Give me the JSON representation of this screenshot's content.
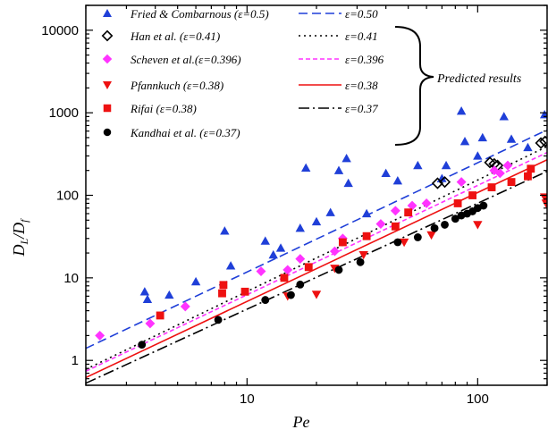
{
  "chart_data": {
    "type": "scatter",
    "title": "",
    "xlabel": "Pe",
    "ylabel_main": "D",
    "ylabel_sub1": "L",
    "ylabel_mid": "/D",
    "ylabel_sub2": "f",
    "xscale": "log",
    "yscale": "log",
    "xlim": [
      2,
      200
    ],
    "ylim": [
      0.5,
      20000
    ],
    "x_ticks": [
      10,
      100
    ],
    "y_ticks": [
      1,
      10,
      100,
      1000,
      10000
    ],
    "x_tick_labels": [
      "10",
      "100"
    ],
    "y_tick_labels": [
      "1",
      "10",
      "100",
      "1000",
      "10000"
    ],
    "grid": false,
    "legend_position": "top-left",
    "brace_label": "Predicted results",
    "series": [
      {
        "name": "Fried & Combarnous (ε=0.5)",
        "marker": "triangle-up",
        "color": "#1f3fd8",
        "points": [
          [
            3.6,
            6.8
          ],
          [
            3.7,
            5.5
          ],
          [
            4.6,
            6.2
          ],
          [
            6.0,
            9.0
          ],
          [
            8.0,
            37
          ],
          [
            8.5,
            14
          ],
          [
            12.0,
            28
          ],
          [
            13.0,
            19
          ],
          [
            14.0,
            23
          ],
          [
            17.0,
            40
          ],
          [
            18.0,
            215
          ],
          [
            20.0,
            48
          ],
          [
            23.0,
            62
          ],
          [
            25.0,
            200
          ],
          [
            27.0,
            280
          ],
          [
            27.5,
            140
          ],
          [
            33.0,
            60
          ],
          [
            40.0,
            185
          ],
          [
            45.0,
            150
          ],
          [
            55.0,
            230
          ],
          [
            70.0,
            160
          ],
          [
            73.0,
            230
          ],
          [
            85.0,
            1050
          ],
          [
            88.0,
            450
          ],
          [
            105.0,
            500
          ],
          [
            130.0,
            900
          ],
          [
            140.0,
            480
          ],
          [
            165.0,
            380
          ],
          [
            195.0,
            950
          ],
          [
            100.0,
            300
          ]
        ]
      },
      {
        "name": "Han et al. (ε=0.41)",
        "marker": "diamond-open",
        "color": "#000000",
        "points": [
          [
            67.0,
            140
          ],
          [
            72.0,
            145
          ],
          [
            113.0,
            250
          ],
          [
            118.0,
            240
          ],
          [
            122.0,
            230
          ],
          [
            188.0,
            430
          ],
          [
            196.0,
            450
          ]
        ]
      },
      {
        "name": "Scheven et al.(ε=0.396)",
        "marker": "diamond",
        "color": "#ff33ff",
        "points": [
          [
            2.3,
            2.0
          ],
          [
            3.8,
            2.8
          ],
          [
            5.4,
            4.5
          ],
          [
            11.5,
            12.0
          ],
          [
            15.0,
            12.5
          ],
          [
            17.0,
            17.0
          ],
          [
            24.0,
            21.0
          ],
          [
            26.0,
            30.0
          ],
          [
            38.0,
            45.0
          ],
          [
            44.0,
            65.0
          ],
          [
            52.0,
            75.0
          ],
          [
            60.0,
            80.0
          ],
          [
            85.0,
            145.0
          ],
          [
            118.0,
            200.0
          ],
          [
            125.0,
            185.0
          ],
          [
            135.0,
            230.0
          ]
        ]
      },
      {
        "name": "Pfannkuch  (ε=0.38)",
        "marker": "triangle-down",
        "color": "#ee1111",
        "points": [
          [
            15.0,
            6.0
          ],
          [
            20.0,
            6.3
          ],
          [
            24.0,
            13.0
          ],
          [
            32.0,
            19.0
          ],
          [
            48.0,
            27.0
          ],
          [
            63.0,
            33.0
          ],
          [
            100.0,
            44.0
          ],
          [
            195.0,
            95.0
          ],
          [
            198.0,
            80.0
          ]
        ]
      },
      {
        "name": "Rifai (ε=0.38)",
        "marker": "square",
        "color": "#ee1111",
        "points": [
          [
            4.2,
            3.5
          ],
          [
            7.8,
            6.5
          ],
          [
            7.9,
            8.2
          ],
          [
            9.8,
            6.8
          ],
          [
            14.5,
            10.0
          ],
          [
            18.5,
            13.5
          ],
          [
            26.0,
            27.0
          ],
          [
            33.0,
            32.0
          ],
          [
            44.0,
            42.0
          ],
          [
            50.0,
            62.0
          ],
          [
            82.0,
            80.0
          ],
          [
            95.0,
            100.0
          ],
          [
            115.0,
            125.0
          ],
          [
            140.0,
            145.0
          ],
          [
            165.0,
            170.0
          ],
          [
            170.0,
            210.0
          ]
        ]
      },
      {
        "name": "Kandhai et al.  (ε=0.37)",
        "marker": "circle",
        "color": "#000000",
        "points": [
          [
            3.5,
            1.55
          ],
          [
            7.5,
            3.1
          ],
          [
            12.0,
            5.4
          ],
          [
            15.5,
            6.2
          ],
          [
            17.0,
            8.3
          ],
          [
            25.0,
            12.5
          ],
          [
            31.0,
            15.5
          ],
          [
            45.0,
            27.0
          ],
          [
            55.0,
            31.0
          ],
          [
            65.0,
            40.0
          ],
          [
            72.0,
            44.0
          ],
          [
            80.0,
            52.0
          ],
          [
            85.0,
            57.0
          ],
          [
            90.0,
            60.0
          ],
          [
            95.0,
            64.0
          ],
          [
            100.0,
            70.0
          ],
          [
            106.0,
            75.0
          ]
        ]
      }
    ],
    "lines": [
      {
        "name": "ε=0.50",
        "color": "#1f3fd8",
        "dash": "10,5",
        "points": [
          [
            2.0,
            1.4
          ],
          [
            200.0,
            620.0
          ]
        ]
      },
      {
        "name": "ε=0.41",
        "color": "#000000",
        "dash": "2,4",
        "points": [
          [
            2.0,
            0.78
          ],
          [
            200.0,
            390.0
          ]
        ]
      },
      {
        "name": "ε=0.396",
        "color": "#ff33ff",
        "dash": "5,3",
        "points": [
          [
            2.0,
            0.74
          ],
          [
            200.0,
            330.0
          ]
        ]
      },
      {
        "name": "ε=0.38",
        "color": "#ee1111",
        "dash": "",
        "points": [
          [
            2.0,
            0.62
          ],
          [
            200.0,
            270.0
          ]
        ]
      },
      {
        "name": "ε=0.37",
        "color": "#000000",
        "dash": "12,4,2,4",
        "points": [
          [
            2.0,
            0.53
          ],
          [
            200.0,
            195.0
          ]
        ]
      }
    ]
  }
}
